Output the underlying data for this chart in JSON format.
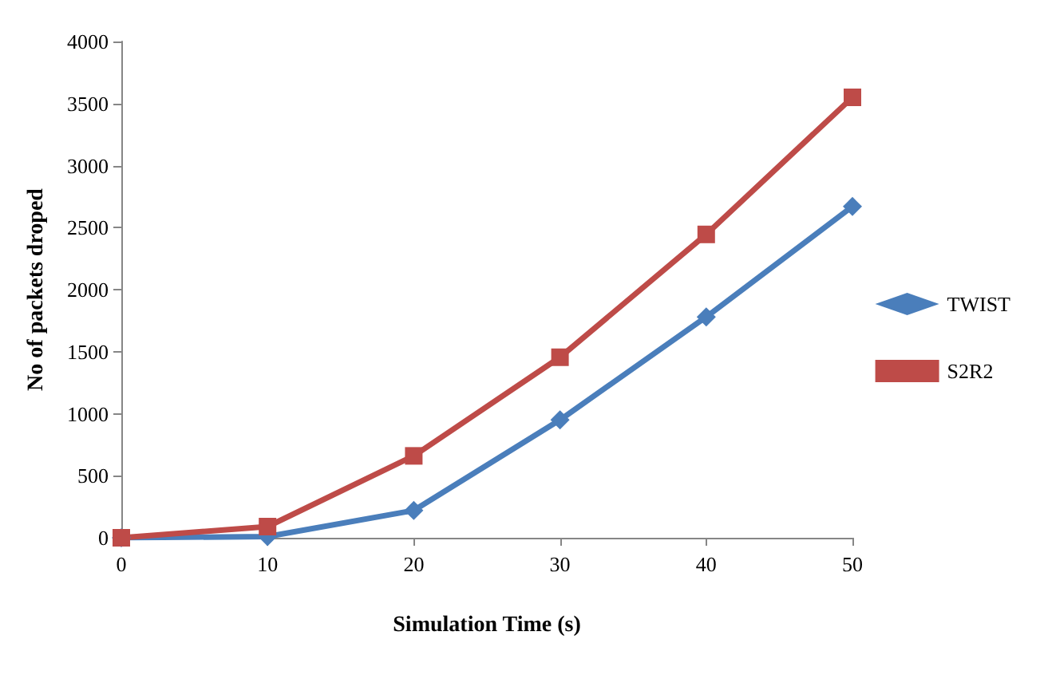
{
  "chart_data": {
    "type": "line",
    "xlabel": "Simulation Time (s)",
    "ylabel": "No of packets droped",
    "x": [
      0,
      10,
      20,
      30,
      40,
      50
    ],
    "series": [
      {
        "name": "TWIST",
        "color": "#4a7ebb",
        "marker": "diamond",
        "values": [
          0,
          10,
          220,
          950,
          1780,
          2670
        ]
      },
      {
        "name": "S2R2",
        "color": "#be4b48",
        "marker": "square",
        "values": [
          0,
          90,
          660,
          1455,
          2445,
          3550
        ]
      }
    ],
    "xlim": [
      0,
      50
    ],
    "xticks": [
      0,
      10,
      20,
      30,
      40,
      50
    ],
    "ylim": [
      0,
      4000
    ],
    "yticks": [
      0,
      500,
      1000,
      1500,
      2000,
      2500,
      3000,
      3500,
      4000
    ],
    "grid": false,
    "legend": "right"
  }
}
